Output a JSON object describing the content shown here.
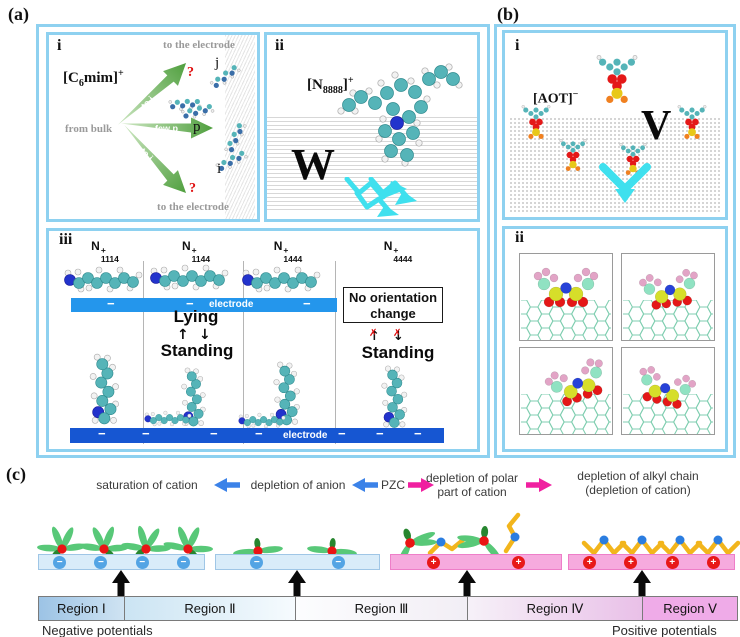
{
  "a": {
    "label": "(a)",
    "i": {
      "label": "i",
      "top": "to the electrode",
      "bottom": "to the electrode",
      "bulk": "from bulk",
      "cat_open": "[C",
      "cat_sub": "6",
      "cat_body": "mim]",
      "cat_sup": "+",
      "arr_j": "to j",
      "arr_p": "few p",
      "arr_i": "to i",
      "q1": "?",
      "q2": "?",
      "mj": "j",
      "mp": "p",
      "mi": "i"
    },
    "ii": {
      "label": "ii",
      "cat_open": "[N",
      "cat_sub": "8888",
      "cat_close": "]",
      "cat_sup": "+",
      "big": "W"
    },
    "iii": {
      "label": "iii",
      "minus": "−",
      "electrode": "electrode",
      "cols": [
        {
          "n": "N",
          "sup": "+",
          "sub": "1114"
        },
        {
          "n": "N",
          "sup": "+",
          "sub": "1144"
        },
        {
          "n": "N",
          "sup": "+",
          "sub": "1444"
        },
        {
          "n": "N",
          "sup": "+",
          "sub": "4444"
        }
      ],
      "lying": "Lying",
      "standing": "Standing",
      "standing4": "Standing",
      "up": "↑",
      "down": "↓",
      "x": "✗",
      "nc1": "No orientation",
      "nc2": "change"
    }
  },
  "b": {
    "label": "(b)",
    "i": {
      "label": "i",
      "an_open": "[AOT]",
      "an_sup": "−",
      "big": "V"
    },
    "ii": {
      "label": "ii"
    }
  },
  "c": {
    "label": "(c)",
    "cap1": "saturation of cation",
    "cap2": "depletion of anion",
    "cap3": "PZC",
    "cap4a": "depletion of polar",
    "cap4b": "part of cation",
    "cap5a": "depletion of alkyl chain",
    "cap5b": "(depletion of cation)",
    "minus": "−",
    "plus": "+",
    "regions": [
      "Region Ⅰ",
      "Region Ⅱ",
      "Region Ⅲ",
      "Region Ⅳ",
      "Region Ⅴ"
    ],
    "neg": "Negative potentials",
    "pos": "Positive potentials"
  },
  "colors": {
    "frame": "#8ed1f0",
    "barTop": "#2496ec",
    "barBottom": "#1656d2",
    "lightBarFill": "#d9ecf9",
    "lightBarBorder": "#9fc6e6",
    "minusCircle": "#53a4e4",
    "pinkBarFill": "#f6aade",
    "pinkBarBorder": "#ee7ec8",
    "plusCircle": "#e81818",
    "petal": "#58c878",
    "petalDark": "#27862f",
    "chainYellow": "#f2b51c",
    "dotBlue": "#2b7de0",
    "dotRed": "#ea1414",
    "cyan": "#3fe0ee",
    "arrowBlue": "#3b82e8",
    "arrowPink": "#f020a0",
    "greenArrow1": "#cfe8c4",
    "greenArrow2": "#4f9f3e",
    "teal": "#55b4b8",
    "atomBlue": "#2233cc",
    "hex": "#7fceb0",
    "sulfur": "#d6de2a",
    "oxy": "#e41818",
    "nitro": "#2742d8",
    "pinkAtom": "#e2a4c6",
    "mint": "#90e2c2",
    "r1a": "#9cc3e5",
    "r1b": "#cfe3f2",
    "r2a": "#cbe4f3",
    "r2b": "#f6fbfe",
    "r3a": "#fcfdfe",
    "r3b": "#f2eef5",
    "r4a": "#f6f1f8",
    "r4b": "#e9c0e8",
    "r5": "#efabe8"
  }
}
